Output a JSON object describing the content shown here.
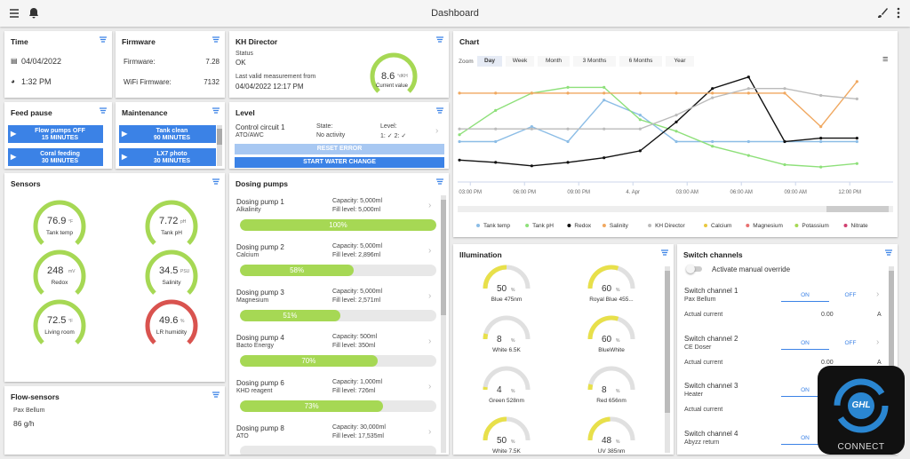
{
  "header": {
    "title": "Dashboard"
  },
  "time": {
    "title": "Time",
    "date": "04/04/2022",
    "time": "1:32 PM"
  },
  "firmware": {
    "title": "Firmware",
    "rows": [
      {
        "label": "Firmware:",
        "value": "7.28"
      },
      {
        "label": "WiFi Firmware:",
        "value": "7132"
      }
    ]
  },
  "kh_director": {
    "title": "KH Director",
    "status_label": "Status",
    "status": "OK",
    "last_label": "Last valid measurement from",
    "last": "04/04/2022 12:17 PM",
    "value": 8.6,
    "unit": "°dKH",
    "value_label": "Current value"
  },
  "feed_pause": {
    "title": "Feed pause",
    "buttons": [
      {
        "name": "Flow pumps OFF",
        "duration": "15 MINUTES"
      },
      {
        "name": "Coral feeding",
        "duration": "30 MINUTES"
      }
    ]
  },
  "maintenance": {
    "title": "Maintenance",
    "buttons": [
      {
        "name": "Tank clean",
        "duration": "90 MINUTES"
      },
      {
        "name": "LX7 photo",
        "duration": "30 MINUTES"
      }
    ]
  },
  "level": {
    "title": "Level",
    "circuit": "Control circuit 1",
    "mode": "ATO/AWC",
    "state_label": "State:",
    "state": "No activity",
    "level_label": "Level:",
    "level": "1: ✓ 2: ✓",
    "buttons": [
      "RESET ERROR",
      "START WATER CHANGE"
    ]
  },
  "sensors": {
    "title": "Sensors",
    "items": [
      {
        "value": 76.9,
        "unit": "°F",
        "name": "Tank temp",
        "color": "#a6d854"
      },
      {
        "value": 7.72,
        "unit": "pH",
        "name": "Tank pH",
        "color": "#a6d854"
      },
      {
        "value": 248,
        "unit": "mV",
        "name": "Redox",
        "color": "#a6d854"
      },
      {
        "value": 34.5,
        "unit": "PSU",
        "name": "Salinity",
        "color": "#a6d854"
      },
      {
        "value": 72.5,
        "unit": "°F",
        "name": "Living room",
        "color": "#a6d854"
      },
      {
        "value": 49.6,
        "unit": "%",
        "name": "LR humidity",
        "color": "#d9534f"
      }
    ]
  },
  "dosing_pumps": {
    "title": "Dosing pumps",
    "items": [
      {
        "name": "Dosing pump 1",
        "label": "Alkalinity",
        "capacity": "Capacity: 5,000ml",
        "fill": "Fill level: 5,000ml",
        "percent": 100,
        "percent_label": "100%"
      },
      {
        "name": "Dosing pump 2",
        "label": "Calcium",
        "capacity": "Capacity: 5,000ml",
        "fill": "Fill level: 2,896ml",
        "percent": 58,
        "percent_label": "58%"
      },
      {
        "name": "Dosing pump 3",
        "label": "Magnesium",
        "capacity": "Capacity: 5,000ml",
        "fill": "Fill level: 2,571ml",
        "percent": 51,
        "percent_label": "51%"
      },
      {
        "name": "Dosing pump 4",
        "label": "Bacto Energy",
        "capacity": "Capacity: 500ml",
        "fill": "Fill level: 350ml",
        "percent": 70,
        "percent_label": "70%"
      },
      {
        "name": "Dosing pump 6",
        "label": "KHD reagent",
        "capacity": "Capacity: 1,000ml",
        "fill": "Fill level: 726ml",
        "percent": 73,
        "percent_label": "73%"
      },
      {
        "name": "Dosing pump 8",
        "label": "ATO",
        "capacity": "Capacity: 30,000ml",
        "fill": "Fill level: 17,535ml"
      }
    ]
  },
  "flow_sensors": {
    "title": "Flow-sensors",
    "name": "Pax Bellum",
    "value": "86 g/h"
  },
  "chart_data": {
    "type": "line",
    "title": "Chart",
    "zoom_label": "Zoom",
    "zoom_options": [
      "Day",
      "Week",
      "Month",
      "3 Months",
      "6 Months",
      "Year"
    ],
    "x": [
      -0.6,
      1.4,
      3.4,
      5.4,
      7.4,
      9.4,
      11.4,
      13.4,
      15.4,
      17.4,
      19.4,
      21.4
    ],
    "xlim": [
      -0.7,
      23.4
    ],
    "xticks": [
      {
        "value": 0,
        "label": "03:00 PM"
      },
      {
        "value": 3,
        "label": "06:00 PM"
      },
      {
        "value": 6,
        "label": "09:00 PM"
      },
      {
        "value": 9,
        "label": "4. Apr"
      },
      {
        "value": 12,
        "label": "03:00 AM"
      },
      {
        "value": 15,
        "label": "06:00 AM"
      },
      {
        "value": 18,
        "label": "09:00 AM"
      },
      {
        "value": 21,
        "label": "12:00 PM"
      }
    ],
    "ylim": [
      0,
      100
    ],
    "series": [
      {
        "name": "Tank temp",
        "color": "#8cbde6",
        "values": [
          35,
          35,
          48,
          35,
          71,
          58,
          35,
          35,
          35,
          35,
          35,
          35
        ]
      },
      {
        "name": "Tank pH",
        "color": "#8ee07a",
        "values": [
          41,
          62,
          77,
          82,
          82,
          54,
          44,
          31,
          23,
          15,
          13,
          16
        ]
      },
      {
        "name": "Redox",
        "color": "#111111",
        "values": [
          19,
          17,
          14,
          17,
          21,
          27,
          52,
          81,
          91,
          35,
          38,
          38
        ]
      },
      {
        "name": "Salinity",
        "color": "#f0a860",
        "values": [
          77,
          77,
          77,
          77,
          77,
          77,
          77,
          77,
          77,
          77,
          48,
          87
        ]
      },
      {
        "name": "KH Director",
        "color": "#bbbbbb",
        "values": [
          46,
          46,
          46,
          46,
          46,
          46,
          58,
          73,
          81,
          81,
          75,
          72
        ]
      },
      {
        "name": "Calcium",
        "color": "#e8c840"
      },
      {
        "name": "Magnesium",
        "color": "#e87070"
      },
      {
        "name": "Potassium",
        "color": "#a6d854"
      },
      {
        "name": "Nitrate",
        "color": "#d04070"
      }
    ]
  },
  "illumination": {
    "title": "Illumination",
    "items": [
      {
        "value": 50,
        "unit": "%",
        "name": "Blue 475nm"
      },
      {
        "value": 60,
        "unit": "%",
        "name": "Royal Blue 455..."
      },
      {
        "value": 8,
        "unit": "%",
        "name": "White 6.5K"
      },
      {
        "value": 60,
        "unit": "%",
        "name": "BlueWhite"
      },
      {
        "value": 4,
        "unit": "%",
        "name": "Green 528nm"
      },
      {
        "value": 8,
        "unit": "%",
        "name": "Red 656nm"
      },
      {
        "value": 50,
        "unit": "%",
        "name": "White 7.5K"
      },
      {
        "value": 48,
        "unit": "%",
        "name": "UV 385nm"
      }
    ]
  },
  "switch_channels": {
    "title": "Switch channels",
    "override": "Activate manual override",
    "on": "ON",
    "off": "OFF",
    "current_label": "Actual current",
    "unit": "A",
    "items": [
      {
        "name": "Switch channel 1",
        "label": "Pax Bellum",
        "current": "0.00"
      },
      {
        "name": "Switch channel 2",
        "label": "CE Doser",
        "current": "0.00"
      },
      {
        "name": "Switch channel 3",
        "label": "Heater"
      },
      {
        "name": "Switch channel 4",
        "label": "Abyzz return"
      }
    ]
  },
  "logo": {
    "brand": "GHL",
    "text": "CONNECT"
  }
}
